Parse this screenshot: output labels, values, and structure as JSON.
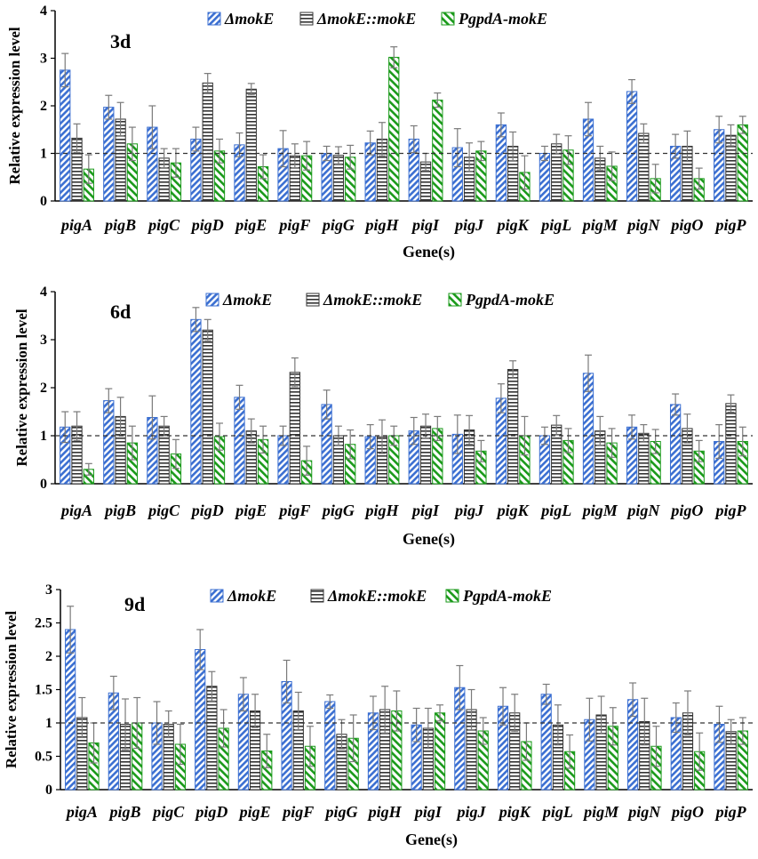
{
  "figure": {
    "xlabel": "Gene(s)",
    "ylabel": "Relative expression level",
    "legend": [
      "ΔmokE",
      "ΔmokE::mokE",
      "PgpdA-mokE"
    ],
    "series_colors": [
      "#3b6fd1",
      "#333333",
      "#1a9a1a"
    ]
  },
  "chart_data": [
    {
      "type": "bar",
      "title": "3d",
      "xlabel": "Gene(s)",
      "ylabel": "Relative expression level",
      "ylim": [
        0,
        4
      ],
      "yticks": [
        "0",
        "1",
        "2",
        "3",
        "4"
      ],
      "reference_line": 1,
      "categories": [
        "pigA",
        "pigB",
        "pigC",
        "pigD",
        "pigE",
        "pigF",
        "pigG",
        "pigH",
        "pigI",
        "pigJ",
        "pigK",
        "pigL",
        "pigM",
        "pigN",
        "pigO",
        "pigP"
      ],
      "series": [
        {
          "name": "ΔmokE",
          "values": [
            2.75,
            1.97,
            1.55,
            1.3,
            1.18,
            1.1,
            1.0,
            1.22,
            1.3,
            1.12,
            1.6,
            1.0,
            1.72,
            2.3,
            1.15,
            1.5
          ],
          "errors": [
            0.35,
            0.25,
            0.45,
            0.25,
            0.25,
            0.38,
            0.15,
            0.25,
            0.28,
            0.4,
            0.25,
            0.15,
            0.35,
            0.25,
            0.25,
            0.28
          ]
        },
        {
          "name": "ΔmokE::mokE",
          "values": [
            1.32,
            1.72,
            0.9,
            2.48,
            2.35,
            0.95,
            0.96,
            1.3,
            0.82,
            0.92,
            1.15,
            1.2,
            0.9,
            1.42,
            1.15,
            1.38
          ],
          "errors": [
            0.3,
            0.35,
            0.2,
            0.2,
            0.12,
            0.25,
            0.18,
            0.35,
            0.18,
            0.3,
            0.3,
            0.2,
            0.25,
            0.2,
            0.32,
            0.22
          ]
        },
        {
          "name": "PgpdA-mokE",
          "values": [
            0.67,
            1.2,
            0.8,
            1.05,
            0.72,
            0.95,
            0.92,
            3.02,
            2.12,
            1.05,
            0.6,
            1.07,
            0.73,
            0.47,
            0.47,
            1.6
          ],
          "errors": [
            0.3,
            0.35,
            0.3,
            0.25,
            0.25,
            0.3,
            0.25,
            0.22,
            0.15,
            0.2,
            0.35,
            0.3,
            0.3,
            0.3,
            0.22,
            0.18
          ]
        }
      ]
    },
    {
      "type": "bar",
      "title": "6d",
      "xlabel": "Gene(s)",
      "ylabel": "Relative expression level",
      "ylim": [
        0,
        4
      ],
      "yticks": [
        "0",
        "1",
        "2",
        "3",
        "4"
      ],
      "reference_line": 1,
      "categories": [
        "pigA",
        "pigB",
        "pigC",
        "pigD",
        "pigE",
        "pigF",
        "pigG",
        "pigH",
        "pigI",
        "pigJ",
        "pigK",
        "pigL",
        "pigM",
        "pigN",
        "pigO",
        "pigP"
      ],
      "series": [
        {
          "name": "ΔmokE",
          "values": [
            1.18,
            1.73,
            1.38,
            3.42,
            1.8,
            1.0,
            1.65,
            0.98,
            1.1,
            1.03,
            1.78,
            1.0,
            2.3,
            1.18,
            1.65,
            0.88
          ],
          "errors": [
            0.32,
            0.25,
            0.45,
            0.25,
            0.25,
            0.2,
            0.3,
            0.25,
            0.28,
            0.4,
            0.3,
            0.18,
            0.38,
            0.25,
            0.22,
            0.35
          ]
        },
        {
          "name": "ΔmokE::mokE",
          "values": [
            1.2,
            1.4,
            1.2,
            3.2,
            1.1,
            2.32,
            1.0,
            0.98,
            1.2,
            1.12,
            2.38,
            1.22,
            1.1,
            1.05,
            1.15,
            1.67
          ],
          "errors": [
            0.3,
            0.4,
            0.2,
            0.22,
            0.25,
            0.3,
            0.2,
            0.35,
            0.25,
            0.3,
            0.18,
            0.2,
            0.3,
            0.18,
            0.3,
            0.18
          ]
        },
        {
          "name": "PgpdA-mokE",
          "values": [
            0.3,
            0.85,
            0.62,
            0.98,
            0.92,
            0.48,
            0.82,
            1.0,
            1.15,
            0.68,
            1.0,
            0.9,
            0.85,
            0.88,
            0.68,
            0.88
          ],
          "errors": [
            0.12,
            0.35,
            0.3,
            0.28,
            0.28,
            0.3,
            0.3,
            0.2,
            0.25,
            0.22,
            0.4,
            0.25,
            0.3,
            0.25,
            0.22,
            0.3
          ]
        }
      ]
    },
    {
      "type": "bar",
      "title": "9d",
      "xlabel": "Gene(s)",
      "ylabel": "Relative expression level",
      "ylim": [
        0,
        3
      ],
      "yticks": [
        "0",
        "0.5",
        "1",
        "1.5",
        "2",
        "2.5",
        "3"
      ],
      "reference_line": 1,
      "categories": [
        "pigA",
        "pigB",
        "pigC",
        "pigD",
        "pigE",
        "pigF",
        "pigG",
        "pigH",
        "pigI",
        "pigJ",
        "pigK",
        "pigL",
        "pigM",
        "pigN",
        "pigO",
        "pigP"
      ],
      "series": [
        {
          "name": "ΔmokE",
          "values": [
            2.4,
            1.45,
            1.0,
            2.1,
            1.43,
            1.62,
            1.32,
            1.15,
            0.97,
            1.53,
            1.25,
            1.43,
            1.05,
            1.35,
            1.08,
            0.98
          ],
          "errors": [
            0.35,
            0.25,
            0.32,
            0.3,
            0.25,
            0.32,
            0.1,
            0.25,
            0.25,
            0.33,
            0.28,
            0.15,
            0.32,
            0.25,
            0.22,
            0.27
          ]
        },
        {
          "name": "ΔmokE::mokE",
          "values": [
            1.08,
            0.98,
            0.98,
            1.55,
            1.18,
            1.18,
            0.83,
            1.2,
            0.92,
            1.2,
            1.15,
            0.97,
            1.12,
            1.02,
            1.15,
            0.87
          ],
          "errors": [
            0.3,
            0.38,
            0.2,
            0.22,
            0.25,
            0.28,
            0.22,
            0.35,
            0.3,
            0.3,
            0.28,
            0.3,
            0.28,
            0.35,
            0.33,
            0.18
          ]
        },
        {
          "name": "PgpdA-mokE",
          "values": [
            0.7,
            1.0,
            0.68,
            0.92,
            0.58,
            0.65,
            0.77,
            1.18,
            1.15,
            0.88,
            0.72,
            0.57,
            0.95,
            0.65,
            0.57,
            0.88
          ],
          "errors": [
            0.3,
            0.38,
            0.3,
            0.28,
            0.25,
            0.3,
            0.35,
            0.3,
            0.12,
            0.2,
            0.28,
            0.25,
            0.28,
            0.3,
            0.28,
            0.2
          ]
        }
      ]
    }
  ]
}
